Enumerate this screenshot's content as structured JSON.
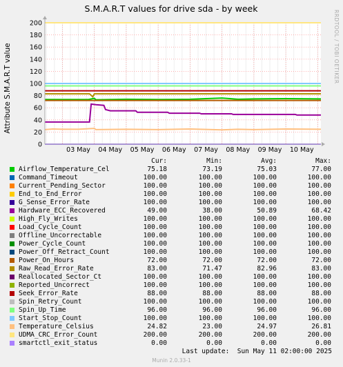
{
  "chart_data": {
    "type": "line",
    "title": "S.M.A.R.T values for drive sda - by week",
    "ylabel": "Attribute S.M.A.R.T value",
    "xlabel": "",
    "ylim": [
      0,
      200
    ],
    "y_ticks": [
      "0",
      "20",
      "40",
      "60",
      "80",
      "100",
      "120",
      "140",
      "160",
      "180",
      "200"
    ],
    "x_ticks": [
      "03 May",
      "04 May",
      "05 May",
      "06 May",
      "07 May",
      "08 May",
      "09 May",
      "10 May"
    ],
    "x_range_days": [
      2.45,
      11.1
    ],
    "grid": true,
    "series": [
      {
        "name": "Airflow_Temperature_Cel",
        "color": "#00cc00",
        "points": [
          [
            2.45,
            73.5
          ],
          [
            3.8,
            73.5
          ],
          [
            4.0,
            75.5
          ],
          [
            4.05,
            73.2
          ],
          [
            5.0,
            74
          ],
          [
            6.0,
            73.5
          ],
          [
            7.0,
            74
          ],
          [
            8.0,
            76
          ],
          [
            8.5,
            74
          ],
          [
            9.0,
            74.5
          ],
          [
            10.0,
            75
          ],
          [
            11.1,
            74.5
          ]
        ]
      },
      {
        "name": "Command_Timeout",
        "color": "#0066b3",
        "points": [
          [
            2.45,
            100
          ],
          [
            11.1,
            100
          ]
        ]
      },
      {
        "name": "Current_Pending_Sector",
        "color": "#ff8000",
        "points": [
          [
            2.45,
            100
          ],
          [
            11.1,
            100
          ]
        ]
      },
      {
        "name": "End_to_End_Error",
        "color": "#ffcc00",
        "points": [
          [
            2.45,
            100
          ],
          [
            11.1,
            100
          ]
        ]
      },
      {
        "name": "G_Sense_Error_Rate",
        "color": "#330099",
        "points": [
          [
            2.45,
            100
          ],
          [
            11.1,
            100
          ]
        ]
      },
      {
        "name": "Hardware_ECC_Recovered",
        "color": "#990099",
        "points": [
          [
            2.45,
            36.5
          ],
          [
            3.85,
            36.5
          ],
          [
            3.9,
            66
          ],
          [
            4.05,
            65
          ],
          [
            4.3,
            64
          ],
          [
            4.35,
            57
          ],
          [
            4.5,
            55
          ],
          [
            5.3,
            55
          ],
          [
            5.35,
            52.5
          ],
          [
            6.3,
            52.5
          ],
          [
            6.35,
            51
          ],
          [
            7.3,
            51
          ],
          [
            7.35,
            50
          ],
          [
            8.3,
            50
          ],
          [
            8.35,
            49
          ],
          [
            10.3,
            49
          ],
          [
            10.35,
            48
          ],
          [
            11.1,
            48
          ]
        ]
      },
      {
        "name": "High_Fly_Writes",
        "color": "#ccff00",
        "points": [
          [
            2.45,
            100
          ],
          [
            11.1,
            100
          ]
        ]
      },
      {
        "name": "Load_Cycle_Count",
        "color": "#ff0000",
        "points": [
          [
            2.45,
            100
          ],
          [
            11.1,
            100
          ]
        ]
      },
      {
        "name": "Offline_Uncorrectable",
        "color": "#808080",
        "points": [
          [
            2.45,
            100
          ],
          [
            11.1,
            100
          ]
        ]
      },
      {
        "name": "Power_Cycle_Count",
        "color": "#008f00",
        "points": [
          [
            2.45,
            100
          ],
          [
            11.1,
            100
          ]
        ]
      },
      {
        "name": "Power_Off_Retract_Count",
        "color": "#00487d",
        "points": [
          [
            2.45,
            100
          ],
          [
            11.1,
            100
          ]
        ]
      },
      {
        "name": "Power_On_Hours",
        "color": "#b35a00",
        "points": [
          [
            2.45,
            72
          ],
          [
            11.1,
            72
          ]
        ]
      },
      {
        "name": "Raw_Read_Error_Rate",
        "color": "#b38f00",
        "points": [
          [
            2.45,
            83
          ],
          [
            3.85,
            83
          ],
          [
            3.95,
            78
          ],
          [
            4.0,
            83
          ],
          [
            11.1,
            83
          ]
        ]
      },
      {
        "name": "Reallocated_Sector_Ct",
        "color": "#6b006b",
        "points": [
          [
            2.45,
            100
          ],
          [
            11.1,
            100
          ]
        ]
      },
      {
        "name": "Reported_Uncorrect",
        "color": "#8fb300",
        "points": [
          [
            2.45,
            100
          ],
          [
            11.1,
            100
          ]
        ]
      },
      {
        "name": "Seek_Error_Rate",
        "color": "#b30000",
        "points": [
          [
            2.45,
            88
          ],
          [
            11.1,
            88
          ]
        ]
      },
      {
        "name": "Spin_Retry_Count",
        "color": "#bebebe",
        "points": [
          [
            2.45,
            100
          ],
          [
            11.1,
            100
          ]
        ]
      },
      {
        "name": "Spin_Up_Time",
        "color": "#80ff80",
        "points": [
          [
            2.45,
            96
          ],
          [
            11.1,
            96
          ]
        ]
      },
      {
        "name": "Start_Stop_Count",
        "color": "#80c9ff",
        "points": [
          [
            2.45,
            100
          ],
          [
            11.1,
            100
          ]
        ]
      },
      {
        "name": "Temperature_Celsius",
        "color": "#ffc080",
        "points": [
          [
            2.45,
            24
          ],
          [
            2.7,
            25
          ],
          [
            3.0,
            24.5
          ],
          [
            3.5,
            24.5
          ],
          [
            4.0,
            26
          ],
          [
            4.05,
            24
          ],
          [
            5.0,
            24.5
          ],
          [
            6.0,
            24
          ],
          [
            7.0,
            25
          ],
          [
            8.0,
            23.5
          ],
          [
            8.5,
            24.5
          ],
          [
            9.0,
            24
          ],
          [
            10.0,
            25
          ],
          [
            11.1,
            24.5
          ]
        ]
      },
      {
        "name": "UDMA_CRC_Error_Count",
        "color": "#ffe680",
        "points": [
          [
            2.45,
            200
          ],
          [
            11.1,
            200
          ]
        ]
      },
      {
        "name": "smartctl_exit_status",
        "color": "#aa80ff",
        "points": [
          [
            2.45,
            0
          ],
          [
            11.1,
            0
          ]
        ]
      }
    ]
  },
  "legend": {
    "headers": {
      "cur": "Cur:",
      "min": "Min:",
      "avg": "Avg:",
      "max": "Max:"
    },
    "rows": [
      {
        "name": "Airflow_Temperature_Cel",
        "color": "#00cc00",
        "cur": "75.18",
        "min": "73.19",
        "avg": "75.03",
        "max": "77.00"
      },
      {
        "name": "Command_Timeout",
        "color": "#0066b3",
        "cur": "100.00",
        "min": "100.00",
        "avg": "100.00",
        "max": "100.00"
      },
      {
        "name": "Current_Pending_Sector",
        "color": "#ff8000",
        "cur": "100.00",
        "min": "100.00",
        "avg": "100.00",
        "max": "100.00"
      },
      {
        "name": "End_to_End_Error",
        "color": "#ffcc00",
        "cur": "100.00",
        "min": "100.00",
        "avg": "100.00",
        "max": "100.00"
      },
      {
        "name": "G_Sense_Error_Rate",
        "color": "#330099",
        "cur": "100.00",
        "min": "100.00",
        "avg": "100.00",
        "max": "100.00"
      },
      {
        "name": "Hardware_ECC_Recovered",
        "color": "#990099",
        "cur": "49.00",
        "min": "38.00",
        "avg": "50.89",
        "max": "68.42"
      },
      {
        "name": "High_Fly_Writes",
        "color": "#ccff00",
        "cur": "100.00",
        "min": "100.00",
        "avg": "100.00",
        "max": "100.00"
      },
      {
        "name": "Load_Cycle_Count",
        "color": "#ff0000",
        "cur": "100.00",
        "min": "100.00",
        "avg": "100.00",
        "max": "100.00"
      },
      {
        "name": "Offline_Uncorrectable",
        "color": "#808080",
        "cur": "100.00",
        "min": "100.00",
        "avg": "100.00",
        "max": "100.00"
      },
      {
        "name": "Power_Cycle_Count",
        "color": "#008f00",
        "cur": "100.00",
        "min": "100.00",
        "avg": "100.00",
        "max": "100.00"
      },
      {
        "name": "Power_Off_Retract_Count",
        "color": "#00487d",
        "cur": "100.00",
        "min": "100.00",
        "avg": "100.00",
        "max": "100.00"
      },
      {
        "name": "Power_On_Hours",
        "color": "#b35a00",
        "cur": "72.00",
        "min": "72.00",
        "avg": "72.00",
        "max": "72.00"
      },
      {
        "name": "Raw_Read_Error_Rate",
        "color": "#b38f00",
        "cur": "83.00",
        "min": "71.47",
        "avg": "82.96",
        "max": "83.00"
      },
      {
        "name": "Reallocated_Sector_Ct",
        "color": "#6b006b",
        "cur": "100.00",
        "min": "100.00",
        "avg": "100.00",
        "max": "100.00"
      },
      {
        "name": "Reported_Uncorrect",
        "color": "#8fb300",
        "cur": "100.00",
        "min": "100.00",
        "avg": "100.00",
        "max": "100.00"
      },
      {
        "name": "Seek_Error_Rate",
        "color": "#b30000",
        "cur": "88.00",
        "min": "88.00",
        "avg": "88.00",
        "max": "88.00"
      },
      {
        "name": "Spin_Retry_Count",
        "color": "#bebebe",
        "cur": "100.00",
        "min": "100.00",
        "avg": "100.00",
        "max": "100.00"
      },
      {
        "name": "Spin_Up_Time",
        "color": "#80ff80",
        "cur": "96.00",
        "min": "96.00",
        "avg": "96.00",
        "max": "96.00"
      },
      {
        "name": "Start_Stop_Count",
        "color": "#80c9ff",
        "cur": "100.00",
        "min": "100.00",
        "avg": "100.00",
        "max": "100.00"
      },
      {
        "name": "Temperature_Celsius",
        "color": "#ffc080",
        "cur": "24.82",
        "min": "23.00",
        "avg": "24.97",
        "max": "26.81"
      },
      {
        "name": "UDMA_CRC_Error_Count",
        "color": "#ffe680",
        "cur": "200.00",
        "min": "200.00",
        "avg": "200.00",
        "max": "200.00"
      },
      {
        "name": "smartctl_exit_status",
        "color": "#aa80ff",
        "cur": "0.00",
        "min": "0.00",
        "avg": "0.00",
        "max": "0.00"
      }
    ]
  },
  "footer": {
    "last_update": "Last update:  Sun May 11 02:00:00 2025",
    "watermark": "Munin 2.0.33-1",
    "side_text": "RRDTOOL / TOBI OETIKER"
  }
}
